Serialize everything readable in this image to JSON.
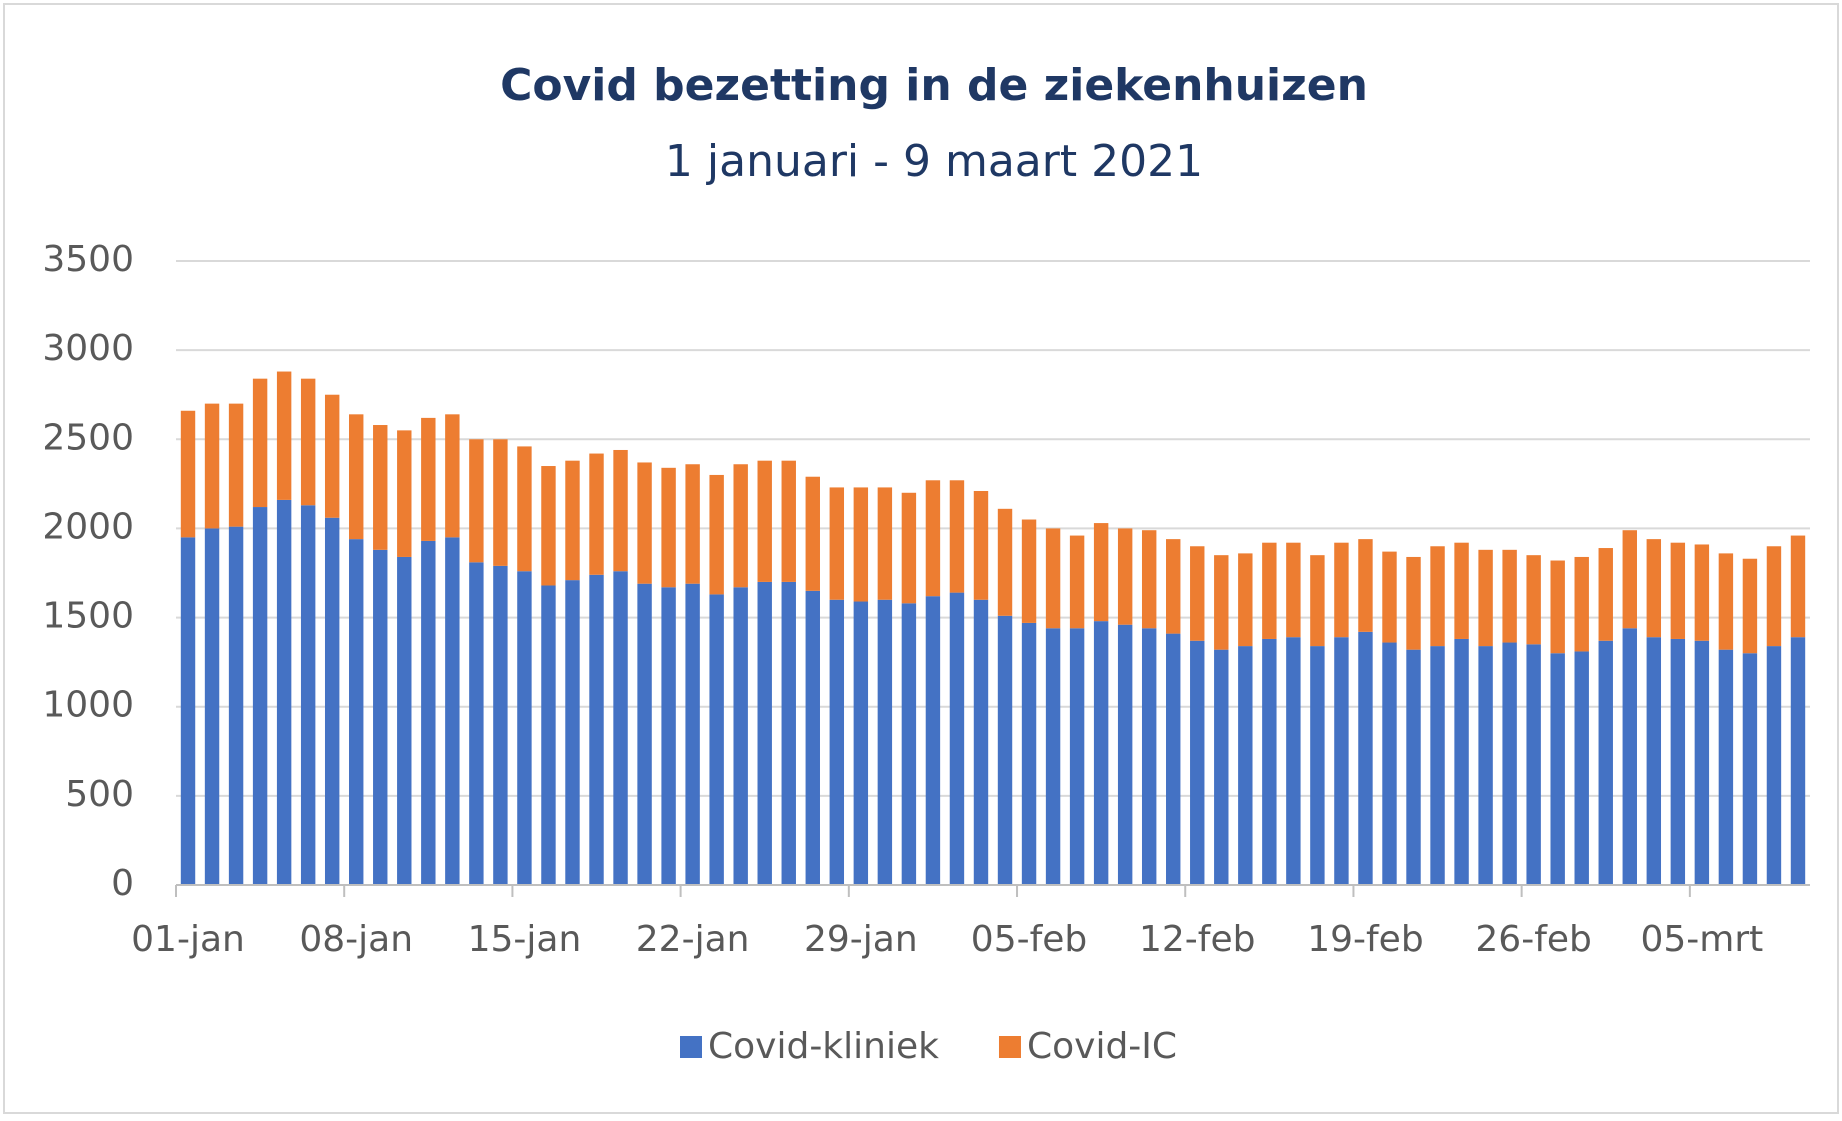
{
  "chart_data": {
    "type": "stacked_bar",
    "title": "Covid bezetting in de ziekenhuizen",
    "subtitle": "1 januari - 9 maart 2021",
    "categories": [
      "01-jan",
      null,
      null,
      null,
      null,
      null,
      null,
      "08-jan",
      null,
      null,
      null,
      null,
      null,
      null,
      "15-jan",
      null,
      null,
      null,
      null,
      null,
      null,
      "22-jan",
      null,
      null,
      null,
      null,
      null,
      null,
      "29-jan",
      null,
      null,
      null,
      null,
      null,
      null,
      "05-feb",
      null,
      null,
      null,
      null,
      null,
      null,
      "12-feb",
      null,
      null,
      null,
      null,
      null,
      null,
      "19-feb",
      null,
      null,
      null,
      null,
      null,
      null,
      "26-feb",
      null,
      null,
      null,
      null,
      null,
      null,
      "05-mrt",
      null,
      null,
      null,
      null
    ],
    "series": [
      {
        "name": "Covid-kliniek",
        "color": "#4472c4",
        "values": [
          1950,
          2000,
          2010,
          2120,
          2160,
          2130,
          2060,
          1940,
          1880,
          1840,
          1930,
          1950,
          1810,
          1790,
          1760,
          1680,
          1710,
          1740,
          1760,
          1690,
          1670,
          1690,
          1630,
          1670,
          1700,
          1700,
          1650,
          1600,
          1590,
          1600,
          1580,
          1620,
          1640,
          1600,
          1510,
          1470,
          1440,
          1440,
          1480,
          1460,
          1440,
          1410,
          1370,
          1320,
          1340,
          1380,
          1390,
          1340,
          1390,
          1420,
          1360,
          1320,
          1340,
          1380,
          1340,
          1360,
          1350,
          1300,
          1310,
          1370,
          1440,
          1390,
          1380,
          1370,
          1320,
          1300,
          1340,
          1390
        ]
      },
      {
        "name": "Covid-IC",
        "color": "#ed7d31",
        "values": [
          710,
          700,
          690,
          720,
          720,
          710,
          690,
          700,
          700,
          710,
          690,
          690,
          690,
          710,
          700,
          670,
          670,
          680,
          680,
          680,
          670,
          670,
          670,
          690,
          680,
          680,
          640,
          630,
          640,
          630,
          620,
          650,
          630,
          610,
          600,
          580,
          560,
          520,
          550,
          540,
          550,
          530,
          530,
          530,
          520,
          540,
          530,
          510,
          530,
          520,
          510,
          520,
          560,
          540,
          540,
          520,
          500,
          520,
          530,
          520,
          550,
          550,
          540,
          540,
          540,
          530,
          560,
          570
        ]
      }
    ],
    "ylim": [
      0,
      3500
    ],
    "yticks": [
      0,
      500,
      1000,
      1500,
      2000,
      2500,
      3000,
      3500
    ],
    "grid": true,
    "legend": "bottom"
  }
}
